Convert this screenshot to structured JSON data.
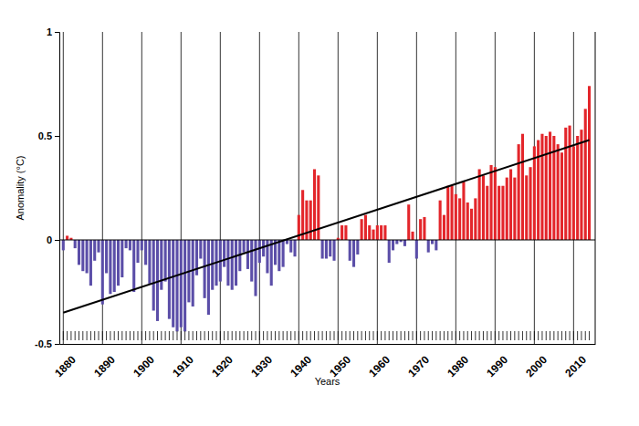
{
  "chart_data": {
    "type": "bar",
    "x_label": "Years",
    "y_label": "Anomality (°C)",
    "x": [
      1880,
      1881,
      1882,
      1883,
      1884,
      1885,
      1886,
      1887,
      1888,
      1889,
      1890,
      1891,
      1892,
      1893,
      1894,
      1895,
      1896,
      1897,
      1898,
      1899,
      1900,
      1901,
      1902,
      1903,
      1904,
      1905,
      1906,
      1907,
      1908,
      1909,
      1910,
      1911,
      1912,
      1913,
      1914,
      1915,
      1916,
      1917,
      1918,
      1919,
      1920,
      1921,
      1922,
      1923,
      1924,
      1925,
      1926,
      1927,
      1928,
      1929,
      1930,
      1931,
      1932,
      1933,
      1934,
      1935,
      1936,
      1937,
      1938,
      1939,
      1940,
      1941,
      1942,
      1943,
      1944,
      1945,
      1946,
      1947,
      1948,
      1949,
      1950,
      1951,
      1952,
      1953,
      1954,
      1955,
      1956,
      1957,
      1958,
      1959,
      1960,
      1961,
      1962,
      1963,
      1964,
      1965,
      1966,
      1967,
      1968,
      1969,
      1970,
      1971,
      1972,
      1973,
      1974,
      1975,
      1976,
      1977,
      1978,
      1979,
      1980,
      1981,
      1982,
      1983,
      1984,
      1985,
      1986,
      1987,
      1988,
      1989,
      1990,
      1991,
      1992,
      1993,
      1994,
      1995,
      1996,
      1997,
      1998,
      1999,
      2000,
      2001,
      2002,
      2003,
      2004,
      2005,
      2006,
      2007,
      2008,
      2009,
      2010,
      2011,
      2012,
      2013,
      2014
    ],
    "series": [
      {
        "type": "bar",
        "values": [
          -0.05,
          0.02,
          0.01,
          -0.04,
          -0.12,
          -0.15,
          -0.16,
          -0.22,
          -0.1,
          -0.06,
          -0.31,
          -0.16,
          -0.26,
          -0.25,
          -0.22,
          -0.18,
          -0.04,
          -0.05,
          -0.25,
          -0.11,
          -0.05,
          -0.12,
          -0.21,
          -0.34,
          -0.39,
          -0.24,
          -0.2,
          -0.38,
          -0.42,
          -0.44,
          -0.42,
          -0.44,
          -0.3,
          -0.32,
          -0.17,
          -0.09,
          -0.28,
          -0.36,
          -0.24,
          -0.22,
          -0.2,
          -0.13,
          -0.22,
          -0.24,
          -0.22,
          -0.15,
          -0.06,
          -0.14,
          -0.2,
          -0.27,
          -0.11,
          -0.08,
          -0.16,
          -0.22,
          -0.12,
          -0.15,
          -0.13,
          -0.02,
          -0.06,
          -0.08,
          0.12,
          0.24,
          0.19,
          0.19,
          0.34,
          0.31,
          -0.09,
          -0.09,
          -0.08,
          -0.1,
          0.01,
          0.07,
          0.07,
          -0.1,
          -0.13,
          -0.07,
          0.1,
          0.12,
          0.07,
          0.05,
          0.07,
          0.07,
          0.07,
          -0.11,
          -0.05,
          -0.02,
          -0.01,
          -0.03,
          0.17,
          0.04,
          -0.09,
          0.1,
          0.11,
          -0.06,
          -0.02,
          -0.05,
          0.19,
          0.12,
          0.26,
          0.26,
          0.22,
          0.2,
          0.28,
          0.18,
          0.15,
          0.2,
          0.34,
          0.31,
          0.26,
          0.36,
          0.35,
          0.26,
          0.26,
          0.3,
          0.34,
          0.3,
          0.46,
          0.51,
          0.31,
          0.35,
          0.45,
          0.48,
          0.51,
          0.5,
          0.52,
          0.5,
          0.46,
          0.42,
          0.54,
          0.55,
          0.45,
          0.5,
          0.53,
          0.63,
          0.74
        ],
        "colors": [
          "#5b4ea8",
          "#e3262b",
          "#e3262b",
          "#5b4ea8",
          "#5b4ea8",
          "#5b4ea8",
          "#5b4ea8",
          "#5b4ea8",
          "#5b4ea8",
          "#5b4ea8",
          "#5b4ea8",
          "#5b4ea8",
          "#5b4ea8",
          "#5b4ea8",
          "#5b4ea8",
          "#5b4ea8",
          "#5b4ea8",
          "#5b4ea8",
          "#5b4ea8",
          "#5b4ea8",
          "#5b4ea8",
          "#5b4ea8",
          "#5b4ea8",
          "#5b4ea8",
          "#5b4ea8",
          "#5b4ea8",
          "#5b4ea8",
          "#5b4ea8",
          "#5b4ea8",
          "#5b4ea8",
          "#5b4ea8",
          "#5b4ea8",
          "#5b4ea8",
          "#5b4ea8",
          "#5b4ea8",
          "#5b4ea8",
          "#5b4ea8",
          "#5b4ea8",
          "#5b4ea8",
          "#5b4ea8",
          "#5b4ea8",
          "#5b4ea8",
          "#5b4ea8",
          "#5b4ea8",
          "#5b4ea8",
          "#5b4ea8",
          "#5b4ea8",
          "#5b4ea8",
          "#5b4ea8",
          "#5b4ea8",
          "#5b4ea8",
          "#5b4ea8",
          "#5b4ea8",
          "#5b4ea8",
          "#5b4ea8",
          "#5b4ea8",
          "#5b4ea8",
          "#5b4ea8",
          "#5b4ea8",
          "#5b4ea8",
          "#e3262b",
          "#e3262b",
          "#e3262b",
          "#e3262b",
          "#e3262b",
          "#e3262b",
          "#5b4ea8",
          "#5b4ea8",
          "#5b4ea8",
          "#5b4ea8",
          "#e3262b",
          "#e3262b",
          "#e3262b",
          "#5b4ea8",
          "#5b4ea8",
          "#5b4ea8",
          "#e3262b",
          "#e3262b",
          "#e3262b",
          "#e3262b",
          "#e3262b",
          "#e3262b",
          "#e3262b",
          "#5b4ea8",
          "#5b4ea8",
          "#5b4ea8",
          "#5b4ea8",
          "#5b4ea8",
          "#e3262b",
          "#e3262b",
          "#5b4ea8",
          "#e3262b",
          "#e3262b",
          "#5b4ea8",
          "#5b4ea8",
          "#5b4ea8",
          "#e3262b",
          "#e3262b",
          "#e3262b",
          "#e3262b",
          "#e3262b",
          "#e3262b",
          "#e3262b",
          "#e3262b",
          "#e3262b",
          "#e3262b",
          "#e3262b",
          "#e3262b",
          "#e3262b",
          "#e3262b",
          "#e3262b",
          "#e3262b",
          "#e3262b",
          "#e3262b",
          "#e3262b",
          "#e3262b",
          "#e3262b",
          "#e3262b",
          "#e3262b",
          "#e3262b",
          "#e3262b",
          "#e3262b",
          "#e3262b",
          "#e3262b",
          "#e3262b",
          "#e3262b",
          "#e3262b",
          "#e3262b",
          "#e3262b",
          "#e3262b",
          "#e3262b",
          "#e3262b",
          "#e3262b",
          "#e3262b",
          "#e3262b"
        ]
      },
      {
        "type": "line",
        "color": "#000000",
        "x": [
          1880,
          2014
        ],
        "values": [
          -0.35,
          0.48
        ]
      }
    ],
    "xlim": [
      1879,
      2015.5
    ],
    "xticks": [
      1880,
      1890,
      1900,
      1910,
      1920,
      1930,
      1940,
      1950,
      1960,
      1970,
      1980,
      1990,
      2000,
      2010
    ],
    "ylim": [
      -0.5,
      1
    ],
    "yticks": [
      -0.5,
      0,
      0.5,
      1
    ],
    "grid": true
  }
}
